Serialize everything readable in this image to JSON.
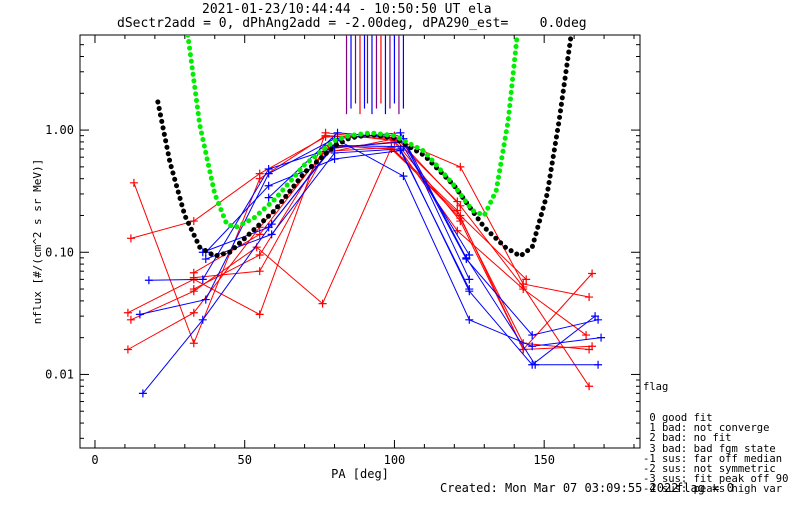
{
  "header": {
    "line1": "2021-01-23/10:44:44 - 10:50:50 UT ela",
    "line2": "dSectr2add = 0, dPhAng2add = -2.00deg, dPA290_est=    0.0deg"
  },
  "footer": {
    "created": "Created: Mon Mar 07 03:09:55 2022",
    "flag": "flag = 0"
  },
  "flag_legend": {
    "title": "flag",
    "items": [
      " 0 good fit",
      " 1 bad: not converge",
      " 2 bad: no fit",
      " 3 bad: bad fgm state",
      "-1 sus: far off median",
      "-2 sus: not symmetric",
      "-3 sus: fit peak off 90",
      "-4 sus: peaks high var"
    ]
  },
  "colors": {
    "red": "#ff0000",
    "blue": "#0000ff",
    "black": "#000000",
    "green": "#00ee00",
    "purple": "#800080"
  },
  "chart_data": {
    "type": "line",
    "xlabel": "PA [deg]",
    "ylabel": "nflux [#/(cm^2 s sr MeV)]",
    "xlim": [
      -5,
      182
    ],
    "ylim": [
      0.0025,
      6
    ],
    "y_scale": "log",
    "x_ticks": [
      0,
      50,
      100,
      150
    ],
    "y_ticks": [
      {
        "value": 0.01,
        "label": "0.01"
      },
      {
        "value": 0.1,
        "label": "0.10"
      },
      {
        "value": 1,
        "label": "1.00"
      }
    ],
    "series": [
      {
        "color": "red",
        "points": [
          [
            13,
            0.37
          ],
          [
            33,
            0.018
          ],
          [
            55,
            0.4
          ],
          [
            77,
            0.9
          ],
          [
            100,
            0.85
          ],
          [
            122,
            0.5
          ],
          [
            143,
            0.055
          ],
          [
            165,
            0.043
          ]
        ]
      },
      {
        "color": "red",
        "points": [
          [
            12,
            0.13
          ],
          [
            33,
            0.18
          ],
          [
            55,
            0.44
          ],
          [
            77,
            0.88
          ],
          [
            100,
            0.9
          ],
          [
            122,
            0.24
          ],
          [
            143,
            0.052
          ],
          [
            165,
            0.008
          ]
        ]
      },
      {
        "color": "red",
        "points": [
          [
            11,
            0.032
          ],
          [
            33,
            0.06
          ],
          [
            55,
            0.031
          ],
          [
            77,
            0.95
          ],
          [
            100,
            0.82
          ],
          [
            122,
            0.18
          ],
          [
            143,
            0.016
          ],
          [
            166,
            0.067
          ]
        ]
      },
      {
        "color": "red",
        "points": [
          [
            12,
            0.028
          ],
          [
            33,
            0.048
          ],
          [
            54,
            0.11
          ],
          [
            76,
            0.038
          ],
          [
            99,
            0.72
          ],
          [
            121,
            0.22
          ],
          [
            143,
            0.016
          ],
          [
            166,
            0.017
          ]
        ]
      },
      {
        "color": "red",
        "points": [
          [
            11,
            0.016
          ],
          [
            33,
            0.032
          ],
          [
            55,
            0.16
          ],
          [
            77,
            0.67
          ],
          [
            99,
            0.72
          ],
          [
            122,
            0.19
          ],
          [
            143,
            0.018
          ],
          [
            165,
            0.016
          ]
        ]
      },
      {
        "color": "red",
        "points": [
          [
            33,
            0.05
          ],
          [
            55,
            0.095
          ],
          [
            77,
            0.7
          ],
          [
            100,
            0.8
          ],
          [
            121,
            0.15
          ],
          [
            143,
            0.05
          ],
          [
            164,
            0.021
          ]
        ]
      },
      {
        "color": "red",
        "points": [
          [
            33,
            0.068
          ],
          [
            55,
            0.14
          ],
          [
            78,
            0.75
          ],
          [
            99,
            0.7
          ],
          [
            122,
            0.2
          ],
          [
            144,
            0.06
          ]
        ]
      },
      {
        "color": "red",
        "points": [
          [
            33,
            0.062
          ],
          [
            55,
            0.07
          ],
          [
            77,
            0.65
          ],
          [
            100,
            0.85
          ],
          [
            121,
            0.26
          ]
        ]
      },
      {
        "color": "blue",
        "points": [
          [
            18,
            0.059
          ],
          [
            36,
            0.06
          ],
          [
            58,
            0.48
          ],
          [
            80,
            0.72
          ],
          [
            103,
            0.8
          ],
          [
            124,
            0.088
          ],
          [
            146,
            0.021
          ],
          [
            168,
            0.028
          ]
        ]
      },
      {
        "color": "blue",
        "points": [
          [
            15,
            0.031
          ],
          [
            37,
            0.041
          ],
          [
            58,
            0.44
          ],
          [
            80,
            0.85
          ],
          [
            102,
            0.95
          ],
          [
            124,
            0.09
          ],
          [
            147,
            0.012
          ],
          [
            168,
            0.012
          ]
        ]
      },
      {
        "color": "blue",
        "points": [
          [
            16,
            0.007
          ],
          [
            36,
            0.028
          ],
          [
            59,
            0.17
          ],
          [
            81,
            0.83
          ],
          [
            103,
            0.42
          ],
          [
            125,
            0.028
          ],
          [
            146,
            0.017
          ],
          [
            169,
            0.02
          ]
        ]
      },
      {
        "color": "blue",
        "points": [
          [
            37,
            0.1
          ],
          [
            58,
            0.35
          ],
          [
            80,
            0.58
          ],
          [
            102,
            0.68
          ],
          [
            125,
            0.05
          ]
        ]
      },
      {
        "color": "blue",
        "points": [
          [
            36,
            0.1
          ],
          [
            58,
            0.16
          ],
          [
            80,
            0.75
          ],
          [
            103,
            0.73
          ],
          [
            125,
            0.095
          ]
        ]
      },
      {
        "color": "blue",
        "points": [
          [
            37,
            0.088
          ],
          [
            59,
            0.14
          ],
          [
            80,
            0.65
          ],
          [
            102,
            0.7
          ],
          [
            125,
            0.048
          ],
          [
            146,
            0.012
          ],
          [
            167,
            0.03
          ]
        ]
      },
      {
        "color": "blue",
        "points": [
          [
            58,
            0.28
          ],
          [
            81,
            0.95
          ],
          [
            103,
            0.85
          ],
          [
            125,
            0.06
          ]
        ]
      },
      {
        "color": "black",
        "style": "dotted",
        "points": [
          [
            21,
            1.7
          ],
          [
            25,
            0.55
          ],
          [
            30,
            0.2
          ],
          [
            35,
            0.11
          ],
          [
            40,
            0.093
          ],
          [
            45,
            0.1
          ],
          [
            50,
            0.13
          ],
          [
            60,
            0.22
          ],
          [
            70,
            0.45
          ],
          [
            80,
            0.74
          ],
          [
            85,
            0.86
          ],
          [
            92,
            0.92
          ],
          [
            100,
            0.86
          ],
          [
            110,
            0.62
          ],
          [
            120,
            0.35
          ],
          [
            130,
            0.16
          ],
          [
            137,
            0.11
          ],
          [
            142,
            0.093
          ],
          [
            146,
            0.11
          ],
          [
            151,
            0.3
          ],
          [
            155,
            1.2
          ],
          [
            159,
            6
          ]
        ]
      },
      {
        "color": "green",
        "style": "dotted",
        "points": [
          [
            31,
            6
          ],
          [
            35,
            1.1
          ],
          [
            40,
            0.3
          ],
          [
            44,
            0.17
          ],
          [
            47,
            0.16
          ],
          [
            53,
            0.19
          ],
          [
            60,
            0.27
          ],
          [
            70,
            0.52
          ],
          [
            80,
            0.82
          ],
          [
            85,
            0.9
          ],
          [
            92,
            0.95
          ],
          [
            100,
            0.9
          ],
          [
            110,
            0.67
          ],
          [
            120,
            0.35
          ],
          [
            126,
            0.22
          ],
          [
            130,
            0.2
          ],
          [
            134,
            0.32
          ],
          [
            138,
            1.2
          ],
          [
            141,
            6
          ]
        ]
      }
    ],
    "markers": {
      "color": "purple",
      "x": [
        84,
        85.5,
        87,
        88.5,
        90,
        91,
        92.5,
        94,
        95.5,
        97,
        98.5,
        100,
        101.5,
        103
      ]
    }
  }
}
